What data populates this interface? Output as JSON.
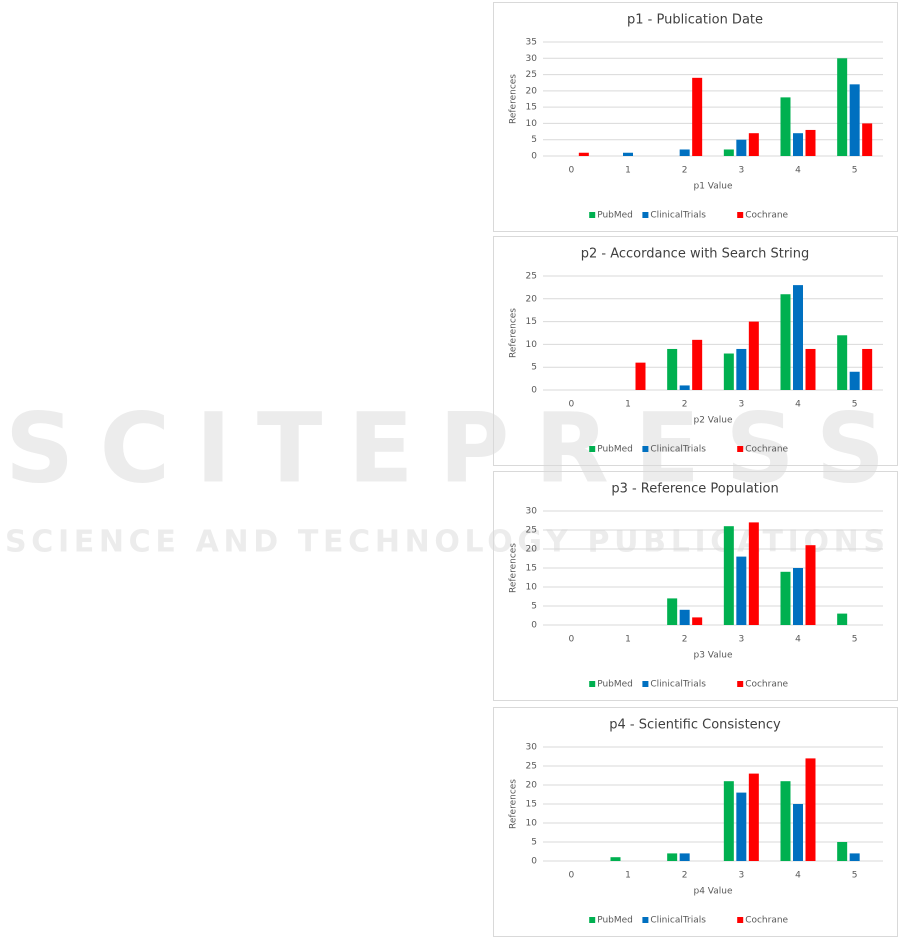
{
  "watermark": {
    "title": "SCITEPRESS",
    "subtitle": "SCIENCE AND TECHNOLOGY PUBLICATIONS"
  },
  "chart_data": [
    {
      "type": "bar",
      "title": "p1 - Publication Date",
      "x_label": "p1 Value",
      "y_label": "References",
      "categories": [
        "0",
        "1",
        "2",
        "3",
        "4",
        "5"
      ],
      "series": [
        {
          "name": "PubMed",
          "color": "#00b050",
          "values": [
            0,
            0,
            0,
            2,
            18,
            30
          ]
        },
        {
          "name": "ClinicalTrials",
          "color": "#0070c0",
          "values": [
            0,
            1,
            2,
            5,
            7,
            22
          ]
        },
        {
          "name": "Cochrane",
          "color": "#ff0000",
          "values": [
            1,
            0,
            24,
            7,
            8,
            10
          ]
        }
      ],
      "ylim": [
        0,
        35
      ],
      "yticks": [
        0,
        5,
        10,
        15,
        20,
        25,
        30,
        35
      ],
      "grid": true,
      "legend": "bottom"
    },
    {
      "type": "bar",
      "title": "p2 - Accordance with Search String",
      "x_label": "p2 Value",
      "y_label": "References",
      "categories": [
        "0",
        "1",
        "2",
        "3",
        "4",
        "5"
      ],
      "series": [
        {
          "name": "PubMed",
          "color": "#00b050",
          "values": [
            0,
            0,
            9,
            8,
            21,
            12
          ]
        },
        {
          "name": "ClinicalTrials",
          "color": "#0070c0",
          "values": [
            0,
            0,
            1,
            9,
            23,
            4
          ]
        },
        {
          "name": "Cochrane",
          "color": "#ff0000",
          "values": [
            0,
            6,
            11,
            15,
            9,
            9
          ]
        }
      ],
      "ylim": [
        0,
        25
      ],
      "yticks": [
        0,
        5,
        10,
        15,
        20,
        25
      ],
      "grid": true,
      "legend": "bottom"
    },
    {
      "type": "bar",
      "title": "p3 - Reference Population",
      "x_label": "p3 Value",
      "y_label": "References",
      "categories": [
        "0",
        "1",
        "2",
        "3",
        "4",
        "5"
      ],
      "series": [
        {
          "name": "PubMed",
          "color": "#00b050",
          "values": [
            0,
            0,
            7,
            26,
            14,
            3
          ]
        },
        {
          "name": "ClinicalTrials",
          "color": "#0070c0",
          "values": [
            0,
            0,
            4,
            18,
            15,
            0
          ]
        },
        {
          "name": "Cochrane",
          "color": "#ff0000",
          "values": [
            0,
            0,
            2,
            27,
            21,
            0
          ]
        }
      ],
      "ylim": [
        0,
        30
      ],
      "yticks": [
        0,
        5,
        10,
        15,
        20,
        25,
        30
      ],
      "grid": true,
      "legend": "bottom"
    },
    {
      "type": "bar",
      "title": "p4 - Scientific Consistency",
      "x_label": "p4 Value",
      "y_label": "References",
      "categories": [
        "0",
        "1",
        "2",
        "3",
        "4",
        "5"
      ],
      "series": [
        {
          "name": "PubMed",
          "color": "#00b050",
          "values": [
            0,
            1,
            2,
            21,
            21,
            5
          ]
        },
        {
          "name": "ClinicalTrials",
          "color": "#0070c0",
          "values": [
            0,
            0,
            2,
            18,
            15,
            2
          ]
        },
        {
          "name": "Cochrane",
          "color": "#ff0000",
          "values": [
            0,
            0,
            0,
            23,
            27,
            0
          ]
        }
      ],
      "ylim": [
        0,
        30
      ],
      "yticks": [
        0,
        5,
        10,
        15,
        20,
        25,
        30
      ],
      "grid": true,
      "legend": "bottom"
    }
  ]
}
